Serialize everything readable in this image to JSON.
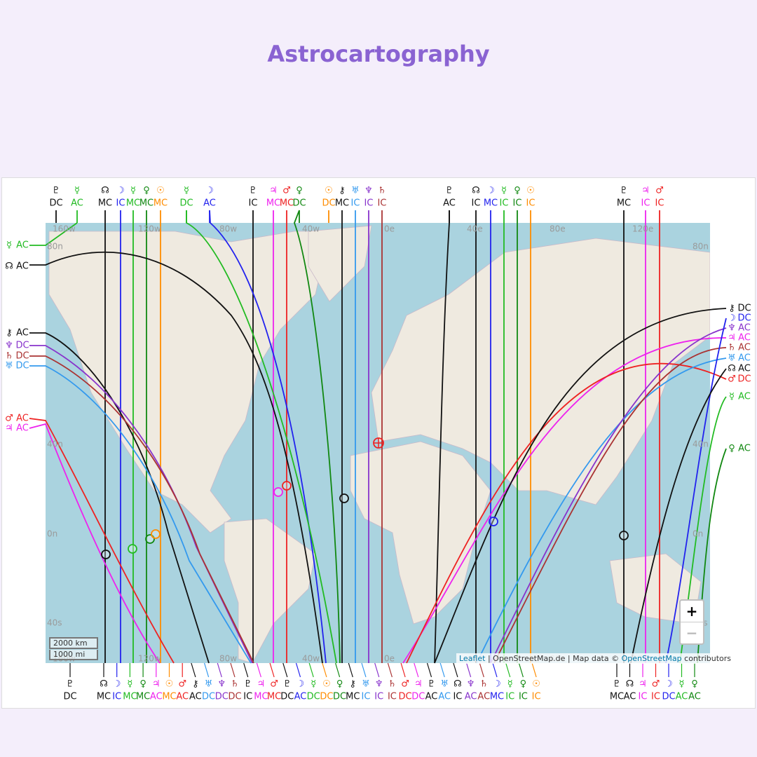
{
  "title": "Astrocartography",
  "map": {
    "lon_labels": [
      "160w",
      "120w",
      "80w",
      "40w",
      "0e",
      "40e",
      "80e",
      "120e"
    ],
    "lat_labels": [
      "80n",
      "40n",
      "0n",
      "40s"
    ],
    "scale": [
      "2000 km",
      "1000 mi"
    ],
    "zoom": [
      "+",
      "−"
    ],
    "attribution": {
      "link1": "Leaflet",
      "middle": "| OpenStreetMap.de | Map data ©",
      "link2": "OpenStreetMap",
      "end": "contributors"
    }
  },
  "top_labels": [
    {
      "glyph": "♇",
      "angle": "DC",
      "color": "#111111"
    },
    {
      "glyph": "☿",
      "angle": "AC",
      "color": "#22bb22"
    },
    {
      "glyph": "☊",
      "angle": "MC",
      "color": "#111111"
    },
    {
      "glyph": "☽",
      "angle": "IC",
      "color": "#2222ee"
    },
    {
      "glyph": "☿",
      "angle": "MC",
      "color": "#22bb22"
    },
    {
      "glyph": "♀",
      "angle": "MC",
      "color": "#118811"
    },
    {
      "glyph": "☉",
      "angle": "MC",
      "color": "#ff8c00"
    },
    {
      "glyph": "☿",
      "angle": "DC",
      "color": "#22bb22"
    },
    {
      "glyph": "☽",
      "angle": "AC",
      "color": "#2222ee"
    },
    {
      "glyph": "♇",
      "angle": "IC",
      "color": "#111111"
    },
    {
      "glyph": "♃",
      "angle": "MC",
      "color": "#ee22ee"
    },
    {
      "glyph": "♂",
      "angle": "MC",
      "color": "#ee2222"
    },
    {
      "glyph": "♀",
      "angle": "DC",
      "color": "#118811"
    },
    {
      "glyph": "☉",
      "angle": "DC",
      "color": "#ff8c00"
    },
    {
      "glyph": "⚷",
      "angle": "MC",
      "color": "#111111"
    },
    {
      "glyph": "♅",
      "angle": "IC",
      "color": "#3399ee"
    },
    {
      "glyph": "♆",
      "angle": "IC",
      "color": "#8833cc"
    },
    {
      "glyph": "♄",
      "angle": "IC",
      "color": "#aa3333"
    },
    {
      "glyph": "♇",
      "angle": "AC",
      "color": "#111111"
    },
    {
      "glyph": "☊",
      "angle": "IC",
      "color": "#111111"
    },
    {
      "glyph": "☽",
      "angle": "MC",
      "color": "#2222ee"
    },
    {
      "glyph": "☿",
      "angle": "IC",
      "color": "#22bb22"
    },
    {
      "glyph": "♀",
      "angle": "IC",
      "color": "#118811"
    },
    {
      "glyph": "☉",
      "angle": "IC",
      "color": "#ff8c00"
    },
    {
      "glyph": "♇",
      "angle": "MC",
      "color": "#111111"
    },
    {
      "glyph": "♃",
      "angle": "IC",
      "color": "#ee22ee"
    },
    {
      "glyph": "♂",
      "angle": "IC",
      "color": "#ee2222"
    }
  ],
  "bottom_labels": [
    {
      "glyph": "♇",
      "angle": "DC",
      "color": "#111111"
    },
    {
      "glyph": "☊",
      "angle": "MC",
      "color": "#111111"
    },
    {
      "glyph": "☽",
      "angle": "IC",
      "color": "#2222ee"
    },
    {
      "glyph": "☿",
      "angle": "MC",
      "color": "#22bb22"
    },
    {
      "glyph": "♀",
      "angle": "MC",
      "color": "#118811"
    },
    {
      "glyph": "♃",
      "angle": "AC",
      "color": "#ee22ee"
    },
    {
      "glyph": "☉",
      "angle": "MC",
      "color": "#ff8c00"
    },
    {
      "glyph": "♂",
      "angle": "AC",
      "color": "#ee2222"
    },
    {
      "glyph": "⚷",
      "angle": "AC",
      "color": "#111111"
    },
    {
      "glyph": "♅",
      "angle": "DC",
      "color": "#3399ee"
    },
    {
      "glyph": "♆",
      "angle": "DC",
      "color": "#8833cc"
    },
    {
      "glyph": "♄",
      "angle": "DC",
      "color": "#aa3333"
    },
    {
      "glyph": "♇",
      "angle": "IC",
      "color": "#111111"
    },
    {
      "glyph": "♃",
      "angle": "MC",
      "color": "#ee22ee"
    },
    {
      "glyph": "♂",
      "angle": "MC",
      "color": "#ee2222"
    },
    {
      "glyph": "♇",
      "angle": "DC",
      "color": "#111111"
    },
    {
      "glyph": "☽",
      "angle": "AC",
      "color": "#2222ee"
    },
    {
      "glyph": "☿",
      "angle": "DC",
      "color": "#22bb22"
    },
    {
      "glyph": "☉",
      "angle": "DC",
      "color": "#ff8c00"
    },
    {
      "glyph": "♀",
      "angle": "DC",
      "color": "#118811"
    },
    {
      "glyph": "⚷",
      "angle": "MC",
      "color": "#111111"
    },
    {
      "glyph": "♅",
      "angle": "IC",
      "color": "#3399ee"
    },
    {
      "glyph": "♆",
      "angle": "IC",
      "color": "#8833cc"
    },
    {
      "glyph": "♄",
      "angle": "IC",
      "color": "#aa3333"
    },
    {
      "glyph": "♂",
      "angle": "DC",
      "color": "#ee2222"
    },
    {
      "glyph": "♃",
      "angle": "DC",
      "color": "#ee22ee"
    },
    {
      "glyph": "♇",
      "angle": "AC",
      "color": "#111111"
    },
    {
      "glyph": "♅",
      "angle": "AC",
      "color": "#3399ee"
    },
    {
      "glyph": "☊",
      "angle": "IC",
      "color": "#111111"
    },
    {
      "glyph": "♆",
      "angle": "AC",
      "color": "#8833cc"
    },
    {
      "glyph": "♄",
      "angle": "AC",
      "color": "#aa3333"
    },
    {
      "glyph": "☽",
      "angle": "MC",
      "color": "#2222ee"
    },
    {
      "glyph": "☿",
      "angle": "IC",
      "color": "#22bb22"
    },
    {
      "glyph": "♀",
      "angle": "IC",
      "color": "#118811"
    },
    {
      "glyph": "☉",
      "angle": "IC",
      "color": "#ff8c00"
    },
    {
      "glyph": "♇",
      "angle": "MC",
      "color": "#111111"
    },
    {
      "glyph": "☊",
      "angle": "AC",
      "color": "#111111"
    },
    {
      "glyph": "♃",
      "angle": "IC",
      "color": "#ee22ee"
    },
    {
      "glyph": "♂",
      "angle": "IC",
      "color": "#ee2222"
    },
    {
      "glyph": "☽",
      "angle": "DC",
      "color": "#2222ee"
    },
    {
      "glyph": "☿",
      "angle": "AC",
      "color": "#22bb22"
    },
    {
      "glyph": "♀",
      "angle": "AC",
      "color": "#118811"
    }
  ],
  "left_labels": [
    {
      "glyph": "☿",
      "angle": "AC",
      "color": "#22bb22"
    },
    {
      "glyph": "☊",
      "angle": "AC",
      "color": "#111111"
    },
    {
      "glyph": "⚷",
      "angle": "AC",
      "color": "#111111"
    },
    {
      "glyph": "♆",
      "angle": "DC",
      "color": "#8833cc"
    },
    {
      "glyph": "♄",
      "angle": "DC",
      "color": "#aa3333"
    },
    {
      "glyph": "♅",
      "angle": "DC",
      "color": "#3399ee"
    },
    {
      "glyph": "♂",
      "angle": "AC",
      "color": "#ee2222"
    },
    {
      "glyph": "♃",
      "angle": "AC",
      "color": "#ee22ee"
    }
  ],
  "right_labels": [
    {
      "glyph": "⚷",
      "angle": "DC",
      "color": "#111111"
    },
    {
      "glyph": "☽",
      "angle": "DC",
      "color": "#2222ee"
    },
    {
      "glyph": "♆",
      "angle": "AC",
      "color": "#8833cc"
    },
    {
      "glyph": "♃",
      "angle": "AC",
      "color": "#ee22ee"
    },
    {
      "glyph": "♄",
      "angle": "AC",
      "color": "#aa3333"
    },
    {
      "glyph": "♅",
      "angle": "AC",
      "color": "#3399ee"
    },
    {
      "glyph": "☊",
      "angle": "AC",
      "color": "#111111"
    },
    {
      "glyph": "♂",
      "angle": "DC",
      "color": "#ee2222"
    },
    {
      "glyph": "☿",
      "angle": "AC",
      "color": "#22bb22"
    },
    {
      "glyph": "♀",
      "angle": "AC",
      "color": "#118811"
    }
  ]
}
